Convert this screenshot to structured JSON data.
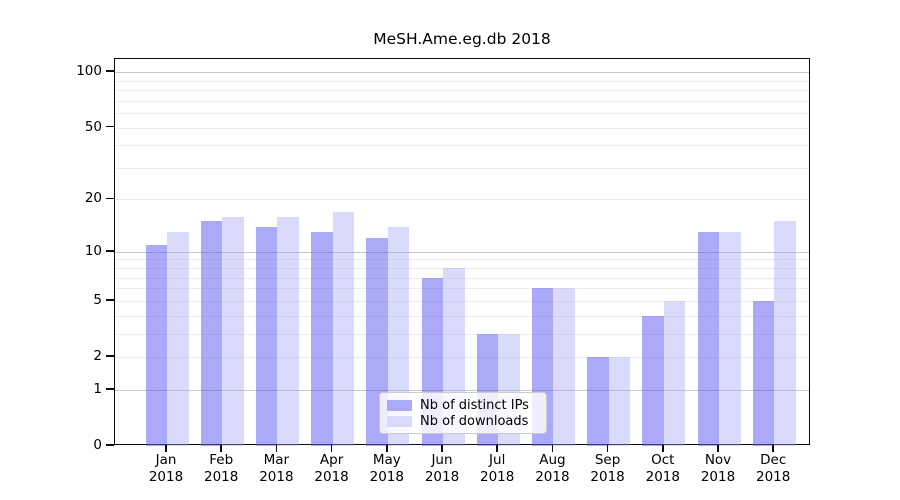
{
  "title": "MeSH.Ame.eg.db 2018",
  "chart_data": {
    "type": "bar",
    "scale": "log1p",
    "title": "MeSH.Ame.eg.db 2018",
    "xlabel": "",
    "ylabel": "",
    "year_label": "2018",
    "months": [
      "Jan",
      "Feb",
      "Mar",
      "Apr",
      "May",
      "Jun",
      "Jul",
      "Aug",
      "Sep",
      "Oct",
      "Nov",
      "Dec"
    ],
    "categories": [
      "Jan 2018",
      "Feb 2018",
      "Mar 2018",
      "Apr 2018",
      "May 2018",
      "Jun 2018",
      "Jul 2018",
      "Aug 2018",
      "Sep 2018",
      "Oct 2018",
      "Nov 2018",
      "Dec 2018"
    ],
    "series": [
      {
        "name": "Nb of distinct IPs",
        "key": "ips",
        "color": "#aaaaf8",
        "fill": "rgba(92,92,243,0.52)",
        "values": [
          11,
          15,
          14,
          13,
          12,
          7,
          3,
          6,
          2,
          4,
          13,
          5
        ]
      },
      {
        "name": "Nb of downloads",
        "key": "downloads",
        "color": "#d9d9fa",
        "fill": "rgba(158,158,244,0.38)",
        "values": [
          13,
          16,
          16,
          17,
          14,
          8,
          3,
          6,
          2,
          5,
          13,
          15
        ]
      }
    ],
    "yticks": [
      0,
      1,
      2,
      5,
      10,
      20,
      50,
      100
    ],
    "major_gridlines": [
      1,
      10,
      100
    ],
    "minor_gridlines": [
      2,
      3,
      4,
      5,
      6,
      7,
      8,
      9,
      20,
      30,
      40,
      50,
      60,
      70,
      80,
      90
    ],
    "ylim": [
      0,
      121
    ],
    "grid": "horizontal",
    "legend_position": "bottom-center"
  }
}
